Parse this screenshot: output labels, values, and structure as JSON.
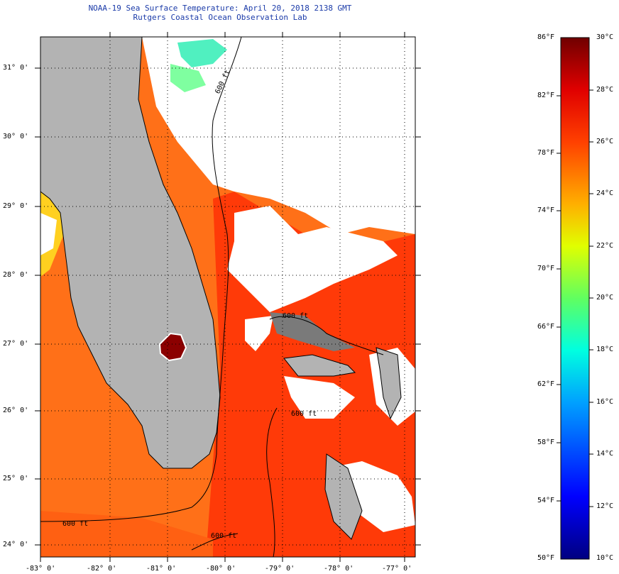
{
  "title": {
    "line1": "NOAA-19 Sea Surface Temperature:  April 20, 2018 2138 GMT",
    "line2": "Rutgers Coastal Ocean Observation Lab"
  },
  "map": {
    "lat_labels": [
      "31° 0'",
      "30° 0'",
      "29° 0'",
      "28° 0'",
      "27° 0'",
      "26° 0'",
      "25° 0'",
      "24° 0'"
    ],
    "lon_labels": [
      "-83° 0'",
      "-82° 0'",
      "-81° 0'",
      "-80° 0'",
      "-79° 0'",
      "-78° 0'",
      "-77° 0'"
    ],
    "contour_labels": [
      "600 ft",
      "600 ft",
      "600 ft",
      "600 ft",
      "600 ft"
    ],
    "colors": {
      "land": "#b3b3b3",
      "cloud": "#ffffff",
      "warm_water": "#ff4a0a",
      "gulf_water": "#ff7a1a",
      "hot_water": "#8b0000",
      "cool_patch": "#5ef0c8"
    }
  },
  "colorbar": {
    "fahrenheit_labels": [
      "86°F",
      "82°F",
      "78°F",
      "74°F",
      "70°F",
      "66°F",
      "62°F",
      "58°F",
      "54°F",
      "50°F"
    ],
    "celsius_labels": [
      "30°C",
      "28°C",
      "26°C",
      "24°C",
      "22°C",
      "20°C",
      "18°C",
      "16°C",
      "14°C",
      "12°C",
      "10°C"
    ]
  }
}
